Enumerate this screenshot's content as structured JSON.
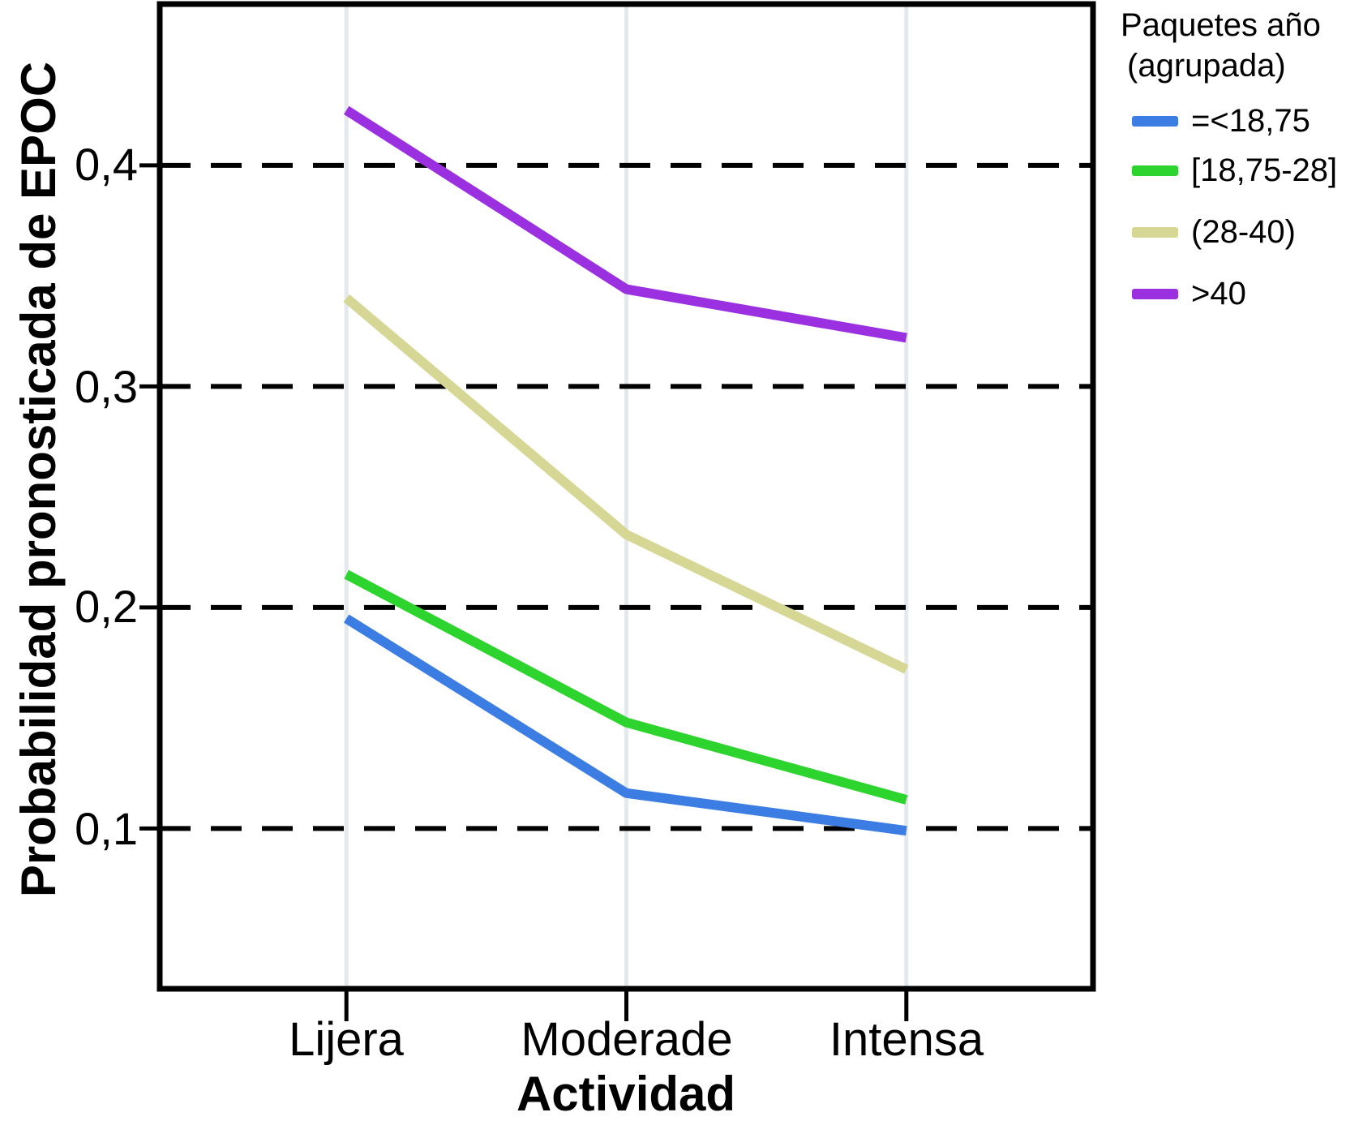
{
  "chart_data": {
    "type": "line",
    "title": "",
    "xlabel": "Actividad",
    "ylabel": "Probabilidad pronosticada de EPOC",
    "categories": [
      "Lijera",
      "Moderade",
      "Intensa"
    ],
    "series": [
      {
        "name": "=<18,75",
        "color": "#3b7de2",
        "values": [
          0.195,
          0.116,
          0.099
        ]
      },
      {
        "name": "[18,75-28]",
        "color": "#2ed42e",
        "values": [
          0.215,
          0.148,
          0.113
        ]
      },
      {
        "name": "(28-40)",
        "color": "#d7d795",
        "values": [
          0.34,
          0.233,
          0.172
        ]
      },
      {
        "name": ">40",
        "color": "#9a30e0",
        "values": [
          0.425,
          0.344,
          0.322
        ]
      }
    ],
    "yticks": {
      "values": [
        0.4,
        0.3,
        0.2,
        0.1
      ],
      "labels": [
        "0,4",
        "0,3",
        "0,2",
        "0,1"
      ]
    },
    "ylim": [
      0.0275,
      0.473
    ],
    "grid": {
      "horizontal": "dashed-black",
      "vertical": "solid-light"
    },
    "legend": {
      "title_line1": "Paquetes año",
      "title_line2": "(agrupada)",
      "position": "top-right"
    },
    "colors": {
      "axis_frame": "#000000",
      "vertical_gridline": "#e4e9ee",
      "text": "#000000"
    }
  }
}
